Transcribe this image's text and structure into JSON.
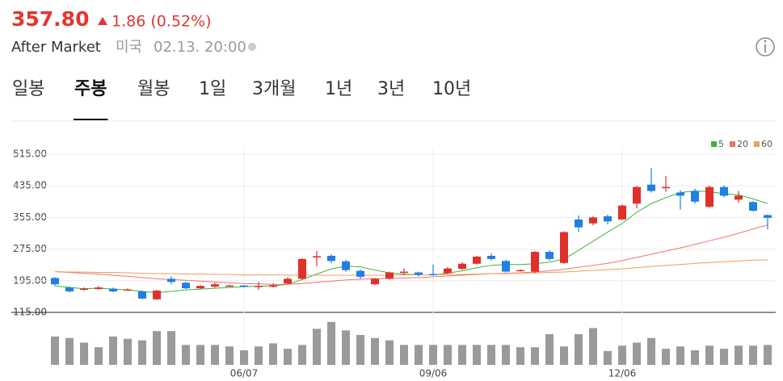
{
  "header": {
    "price": "357.80",
    "change": "1.86 (0.52%)",
    "session": "After Market",
    "market": "미국",
    "timestamp": "02.13. 20:00"
  },
  "tabs": [
    "일봉",
    "주봉",
    "월봉",
    "1일",
    "3개월",
    "1년",
    "3년",
    "10년"
  ],
  "selected_tab": 1,
  "chart_data": {
    "type": "candlestick",
    "categories": [
      null,
      null,
      null,
      null,
      null,
      null,
      null,
      null,
      null,
      null,
      null,
      null,
      null,
      "06/07",
      null,
      null,
      null,
      null,
      null,
      null,
      null,
      null,
      null,
      null,
      null,
      null,
      "09/06",
      null,
      null,
      null,
      null,
      null,
      null,
      null,
      null,
      null,
      null,
      null,
      null,
      "12/06",
      null,
      null,
      null,
      null,
      null,
      null,
      null,
      null,
      null,
      null
    ],
    "open": [
      202,
      178,
      172,
      174,
      175,
      172,
      168,
      148,
      200,
      190,
      176,
      180,
      182,
      183,
      180,
      180,
      188,
      200,
      256,
      258,
      244,
      220,
      186,
      200,
      215,
      216,
      212,
      214,
      225,
      238,
      258,
      245,
      220,
      218,
      268,
      240,
      350,
      340,
      358,
      350,
      390,
      438,
      430,
      418,
      422,
      382,
      432,
      400,
      394,
      361
    ],
    "high": [
      204,
      180,
      178,
      182,
      178,
      176,
      170,
      172,
      206,
      192,
      184,
      190,
      185,
      184,
      192,
      188,
      204,
      252,
      270,
      262,
      248,
      224,
      202,
      218,
      226,
      218,
      236,
      230,
      242,
      258,
      264,
      248,
      224,
      270,
      272,
      320,
      360,
      358,
      362,
      388,
      435,
      480,
      460,
      424,
      428,
      436,
      436,
      422,
      396,
      363
    ],
    "low": [
      183,
      166,
      170,
      172,
      166,
      170,
      148,
      146,
      186,
      174,
      174,
      178,
      180,
      178,
      172,
      178,
      186,
      198,
      232,
      240,
      218,
      200,
      184,
      198,
      210,
      206,
      208,
      212,
      222,
      236,
      246,
      216,
      218,
      214,
      246,
      238,
      318,
      335,
      338,
      348,
      378,
      418,
      420,
      375,
      390,
      380,
      406,
      392,
      370,
      325
    ],
    "close": [
      186,
      168,
      175,
      178,
      168,
      173,
      150,
      170,
      192,
      176,
      182,
      186,
      183,
      181,
      182,
      184,
      200,
      250,
      257,
      245,
      222,
      205,
      200,
      216,
      218,
      210,
      210,
      226,
      238,
      256,
      250,
      218,
      222,
      268,
      250,
      318,
      330,
      355,
      345,
      385,
      432,
      422,
      432,
      410,
      395,
      432,
      410,
      410,
      372,
      354
    ],
    "up_color": "#e0302c",
    "down_color": "#1f7fe3",
    "series": [
      {
        "name": "5",
        "color": "#3cb43c",
        "values": [
          182,
          178,
          175,
          176,
          174,
          172,
          168,
          165,
          168,
          172,
          174,
          176,
          178,
          180,
          181,
          182,
          186,
          198,
          212,
          225,
          232,
          230,
          222,
          215,
          212,
          210,
          210,
          214,
          220,
          228,
          234,
          236,
          236,
          238,
          242,
          250,
          272,
          295,
          318,
          340,
          368,
          390,
          405,
          418,
          422,
          420,
          415,
          412,
          402,
          390
        ]
      },
      {
        "name": "20",
        "color": "#f07070",
        "values": [
          218,
          216,
          214,
          212,
          209,
          206,
          203,
          200,
          198,
          196,
          194,
          192,
          190,
          188,
          187,
          186,
          186,
          188,
          191,
          194,
          197,
          199,
          200,
          201,
          202,
          203,
          205,
          207,
          209,
          211,
          213,
          214,
          215,
          217,
          220,
          224,
          229,
          234,
          239,
          246,
          254,
          262,
          270,
          278,
          287,
          296,
          305,
          315,
          326,
          336
        ]
      },
      {
        "name": "60",
        "color": "#f0a050",
        "values": [
          218,
          217,
          217,
          216,
          216,
          215,
          214,
          213,
          213,
          212,
          212,
          211,
          211,
          210,
          210,
          210,
          209,
          209,
          209,
          209,
          209,
          209,
          209,
          209,
          210,
          210,
          210,
          211,
          211,
          212,
          213,
          213,
          214,
          215,
          216,
          217,
          219,
          221,
          223,
          225,
          228,
          231,
          234,
          236,
          239,
          241,
          243,
          245,
          247,
          248
        ]
      }
    ],
    "ylim": [
      115,
      515
    ],
    "yticks": [
      {
        "value": 115,
        "label": "115.00"
      },
      {
        "value": 195,
        "label": "195.00"
      },
      {
        "value": 275,
        "label": "275.00"
      },
      {
        "value": 355,
        "label": "355.00"
      },
      {
        "value": 435,
        "label": "435.00"
      },
      {
        "value": 515,
        "label": "515.00"
      }
    ],
    "grid": true,
    "legend": "top-right",
    "volume": {
      "color": "#9a9a9a",
      "ylim": [
        0,
        60
      ],
      "values": [
        37,
        35,
        29,
        23,
        37,
        34,
        32,
        44,
        44,
        26,
        26,
        26,
        24,
        19,
        24,
        28,
        21,
        26,
        47,
        56,
        45,
        39,
        35,
        32,
        26,
        26,
        26,
        26,
        26,
        26,
        26,
        26,
        23,
        23,
        40,
        24,
        40,
        48,
        18,
        25,
        29,
        35,
        21,
        24,
        19,
        25,
        21,
        25,
        25,
        26
      ]
    }
  }
}
